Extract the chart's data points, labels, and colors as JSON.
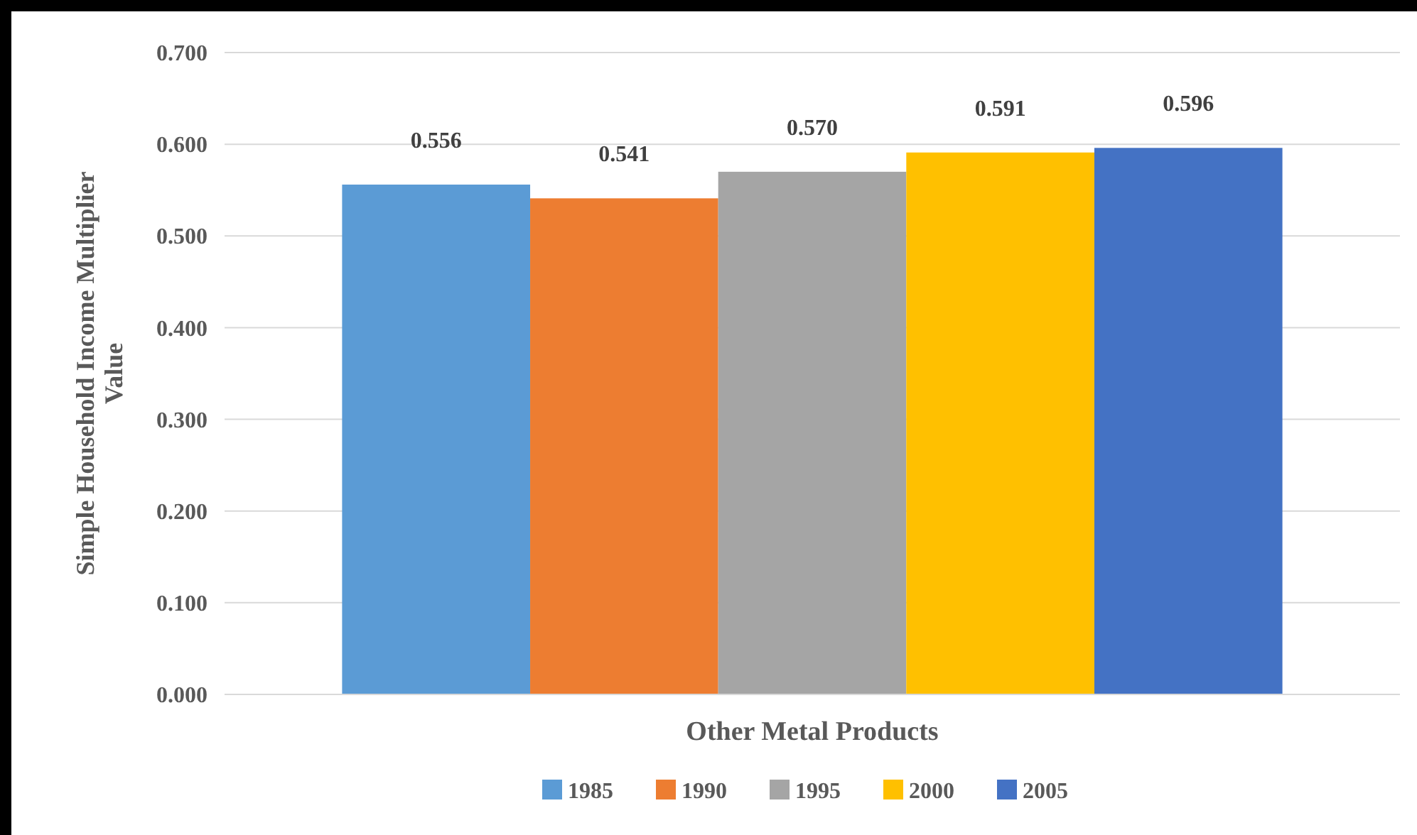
{
  "chart_data": {
    "type": "bar",
    "categories": [
      "Other Metal Products"
    ],
    "ylabel": "Simple Household Income Multiplier Value",
    "series": [
      {
        "name": "1985",
        "color": "#5b9bd5",
        "values": [
          0.556
        ],
        "value_labels": [
          "0.556"
        ]
      },
      {
        "name": "1990",
        "color": "#ed7d31",
        "values": [
          0.541
        ],
        "value_labels": [
          "0.541"
        ]
      },
      {
        "name": "1995",
        "color": "#a5a5a5",
        "values": [
          0.57
        ],
        "value_labels": [
          "0.570"
        ]
      },
      {
        "name": "2000",
        "color": "#ffc000",
        "values": [
          0.591
        ],
        "value_labels": [
          "0.591"
        ]
      },
      {
        "name": "2005",
        "color": "#4472c4",
        "values": [
          0.596
        ],
        "value_labels": [
          "0.596"
        ]
      }
    ],
    "ylim": [
      0,
      0.7
    ],
    "yticks": [
      {
        "value": 0,
        "label": "0.000"
      },
      {
        "value": 0.1,
        "label": "0.100"
      },
      {
        "value": 0.2,
        "label": "0.200"
      },
      {
        "value": 0.3,
        "label": "0.300"
      },
      {
        "value": 0.4,
        "label": "0.400"
      },
      {
        "value": 0.5,
        "label": "0.500"
      },
      {
        "value": 0.6,
        "label": "0.600"
      },
      {
        "value": 0.7,
        "label": "0.700"
      }
    ],
    "grid": "y",
    "legend": "bottom"
  }
}
